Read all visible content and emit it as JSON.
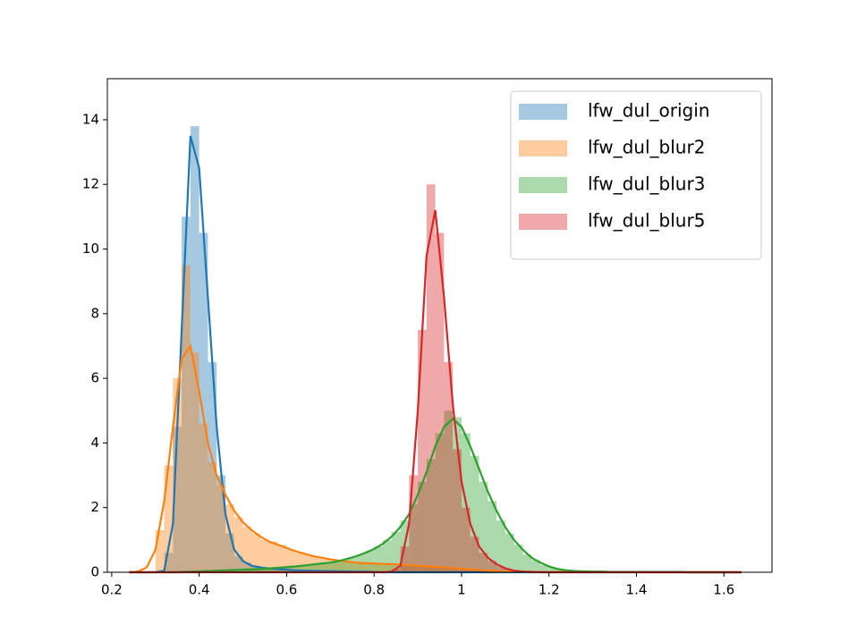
{
  "chart_data": {
    "type": "histogram",
    "xlim": [
      0.19,
      1.71
    ],
    "ylim": [
      0,
      15.27
    ],
    "xticks": [
      0.2,
      0.4,
      0.6,
      0.8,
      1.0,
      1.2,
      1.4,
      1.6
    ],
    "yticks": [
      0,
      2,
      4,
      6,
      8,
      10,
      12,
      14
    ],
    "legend": "upper right",
    "bins": [
      0.3,
      0.32,
      0.34,
      0.36,
      0.38,
      0.4,
      0.42,
      0.44,
      0.46,
      0.48,
      0.5,
      0.52,
      0.54,
      0.56,
      0.58,
      0.6,
      0.62,
      0.64,
      0.66,
      0.68,
      0.7,
      0.72,
      0.74,
      0.76,
      0.78,
      0.8,
      0.82,
      0.84,
      0.86,
      0.88,
      0.9,
      0.92,
      0.94,
      0.96,
      0.98,
      1.0,
      1.02,
      1.04,
      1.06,
      1.08,
      1.1,
      1.12,
      1.14,
      1.16,
      1.18,
      1.2,
      1.22,
      1.24,
      1.26,
      1.28,
      1.3
    ],
    "kde_x": [
      0.24,
      0.26,
      0.28,
      0.3,
      0.32,
      0.34,
      0.36,
      0.38,
      0.4,
      0.42,
      0.44,
      0.46,
      0.48,
      0.5,
      0.52,
      0.54,
      0.56,
      0.58,
      0.6,
      0.62,
      0.64,
      0.66,
      0.68,
      0.7,
      0.72,
      0.74,
      0.76,
      0.78,
      0.8,
      0.82,
      0.84,
      0.86,
      0.88,
      0.9,
      0.92,
      0.94,
      0.96,
      0.98,
      1.0,
      1.02,
      1.04,
      1.06,
      1.08,
      1.1,
      1.12,
      1.14,
      1.16,
      1.18,
      1.2,
      1.22,
      1.24,
      1.26,
      1.28,
      1.3,
      1.32,
      1.34,
      1.36,
      1.38,
      1.4,
      1.42,
      1.44,
      1.46,
      1.48,
      1.5,
      1.52,
      1.54,
      1.56,
      1.58,
      1.6,
      1.62,
      1.64
    ],
    "series": [
      {
        "name": "lfw_dul_origin",
        "color": "#1f77b4",
        "counts": [
          0,
          0.6,
          4.5,
          11,
          13.8,
          10.5,
          6.5,
          3,
          1.2,
          0.5,
          0.3,
          0.2,
          0.15,
          0.1,
          0.1,
          0.08,
          0.06,
          0.05,
          0.04,
          0.04,
          0.03,
          0.03,
          0.02,
          0.02,
          0.01,
          0,
          0,
          0,
          0,
          0,
          0,
          0,
          0,
          0,
          0,
          0,
          0,
          0,
          0,
          0,
          0,
          0,
          0,
          0,
          0,
          0,
          0,
          0,
          0,
          0
        ],
        "kde": [
          0,
          0,
          0,
          0,
          0.05,
          1.5,
          7.5,
          13.5,
          12.5,
          8.5,
          4.5,
          1.8,
          0.7,
          0.35,
          0.2,
          0.15,
          0.12,
          0.1,
          0.08,
          0.06,
          0.05,
          0.05,
          0.04,
          0.04,
          0.03,
          0.03,
          0.02,
          0.02,
          0.01,
          0,
          0,
          0,
          0,
          0,
          0,
          0,
          0,
          0,
          0,
          0,
          0,
          0,
          0,
          0,
          0,
          0,
          0,
          0,
          0,
          0,
          0,
          0,
          0,
          0,
          0,
          0,
          0,
          0,
          0,
          0,
          0,
          0,
          0,
          0,
          0,
          0,
          0,
          0,
          0,
          0,
          0
        ]
      },
      {
        "name": "lfw_dul_blur2",
        "color": "#ff7f0e",
        "counts": [
          1.3,
          3.3,
          6,
          9.5,
          6.8,
          4.6,
          3.4,
          2.7,
          2.1,
          1.7,
          1.4,
          1.2,
          1.0,
          0.95,
          0.85,
          0.7,
          0.6,
          0.55,
          0.48,
          0.42,
          0.38,
          0.35,
          0.32,
          0.29,
          0.27,
          0.26,
          0.25,
          0.24,
          0.23,
          0.21,
          0.2,
          0.18,
          0.16,
          0.14,
          0.12,
          0.1,
          0.08,
          0.06,
          0.05,
          0.04,
          0.03,
          0.02,
          0.02,
          0.01,
          0.01,
          0.01,
          0.01,
          0.01,
          0,
          0
        ],
        "kde": [
          0,
          0.02,
          0.15,
          0.7,
          2.2,
          4.5,
          6.6,
          7.0,
          5.6,
          4.0,
          3.0,
          2.4,
          1.9,
          1.55,
          1.3,
          1.1,
          0.95,
          0.85,
          0.75,
          0.65,
          0.58,
          0.5,
          0.45,
          0.4,
          0.36,
          0.33,
          0.3,
          0.28,
          0.27,
          0.26,
          0.25,
          0.24,
          0.22,
          0.2,
          0.19,
          0.17,
          0.15,
          0.13,
          0.11,
          0.09,
          0.07,
          0.05,
          0.04,
          0.03,
          0.02,
          0.02,
          0.01,
          0.01,
          0.01,
          0.01,
          0.01,
          0.01,
          0.01,
          0.01,
          0.01,
          0.01,
          0.01,
          0.01,
          0.01,
          0,
          0,
          0,
          0,
          0,
          0,
          0,
          0,
          0,
          0,
          0,
          0
        ]
      },
      {
        "name": "lfw_dul_blur3",
        "color": "#2ca02c",
        "counts": [
          0,
          0,
          0,
          0.01,
          0.02,
          0.03,
          0.04,
          0.05,
          0.06,
          0.07,
          0.08,
          0.09,
          0.11,
          0.13,
          0.15,
          0.17,
          0.2,
          0.22,
          0.25,
          0.28,
          0.32,
          0.38,
          0.46,
          0.55,
          0.66,
          0.8,
          1.0,
          1.25,
          1.6,
          2.1,
          2.8,
          3.5,
          4.3,
          5.0,
          4.8,
          4.3,
          3.6,
          2.8,
          2.2,
          1.6,
          1.2,
          0.85,
          0.55,
          0.38,
          0.22,
          0.14,
          0.08,
          0.05,
          0.03,
          0.02
        ],
        "kde": [
          0,
          0,
          0,
          0,
          0,
          0,
          0.01,
          0.02,
          0.03,
          0.04,
          0.05,
          0.06,
          0.07,
          0.08,
          0.09,
          0.1,
          0.12,
          0.14,
          0.16,
          0.18,
          0.21,
          0.24,
          0.27,
          0.3,
          0.35,
          0.42,
          0.5,
          0.6,
          0.72,
          0.88,
          1.1,
          1.4,
          1.8,
          2.4,
          3.1,
          3.9,
          4.5,
          4.75,
          4.5,
          3.9,
          3.2,
          2.5,
          1.9,
          1.4,
          1.0,
          0.7,
          0.45,
          0.3,
          0.18,
          0.1,
          0.06,
          0.04,
          0.03,
          0.02,
          0.02,
          0.01,
          0.01,
          0.01,
          0.01,
          0.01,
          0.01,
          0.01,
          0.01,
          0.01,
          0,
          0,
          0,
          0,
          0,
          0,
          0
        ]
      },
      {
        "name": "lfw_dul_blur5",
        "color": "#d62728",
        "counts": [
          0,
          0,
          0,
          0,
          0,
          0,
          0,
          0,
          0,
          0,
          0,
          0,
          0,
          0,
          0,
          0,
          0,
          0,
          0,
          0,
          0,
          0,
          0,
          0,
          0,
          0,
          0,
          0.1,
          0.8,
          3.0,
          7.5,
          12.0,
          10.5,
          6.5,
          3.8,
          2.0,
          1.1,
          0.6,
          0.35,
          0.18,
          0.08,
          0.03,
          0.01,
          0,
          0,
          0,
          0,
          0,
          0,
          0
        ],
        "kde": [
          0,
          0,
          0,
          0,
          0,
          0,
          0,
          0,
          0,
          0,
          0,
          0,
          0,
          0,
          0,
          0,
          0,
          0,
          0,
          0,
          0,
          0,
          0,
          0,
          0,
          0,
          0,
          0,
          0,
          0,
          0.02,
          0.2,
          1.5,
          5.0,
          9.8,
          11.2,
          8.5,
          5.2,
          2.8,
          1.5,
          0.8,
          0.45,
          0.25,
          0.12,
          0.05,
          0.02,
          0.01,
          0,
          0,
          0,
          0,
          0,
          0,
          0,
          0,
          0,
          0,
          0,
          0,
          0,
          0,
          0,
          0,
          0,
          0,
          0,
          0,
          0,
          0,
          0,
          0
        ]
      }
    ]
  }
}
